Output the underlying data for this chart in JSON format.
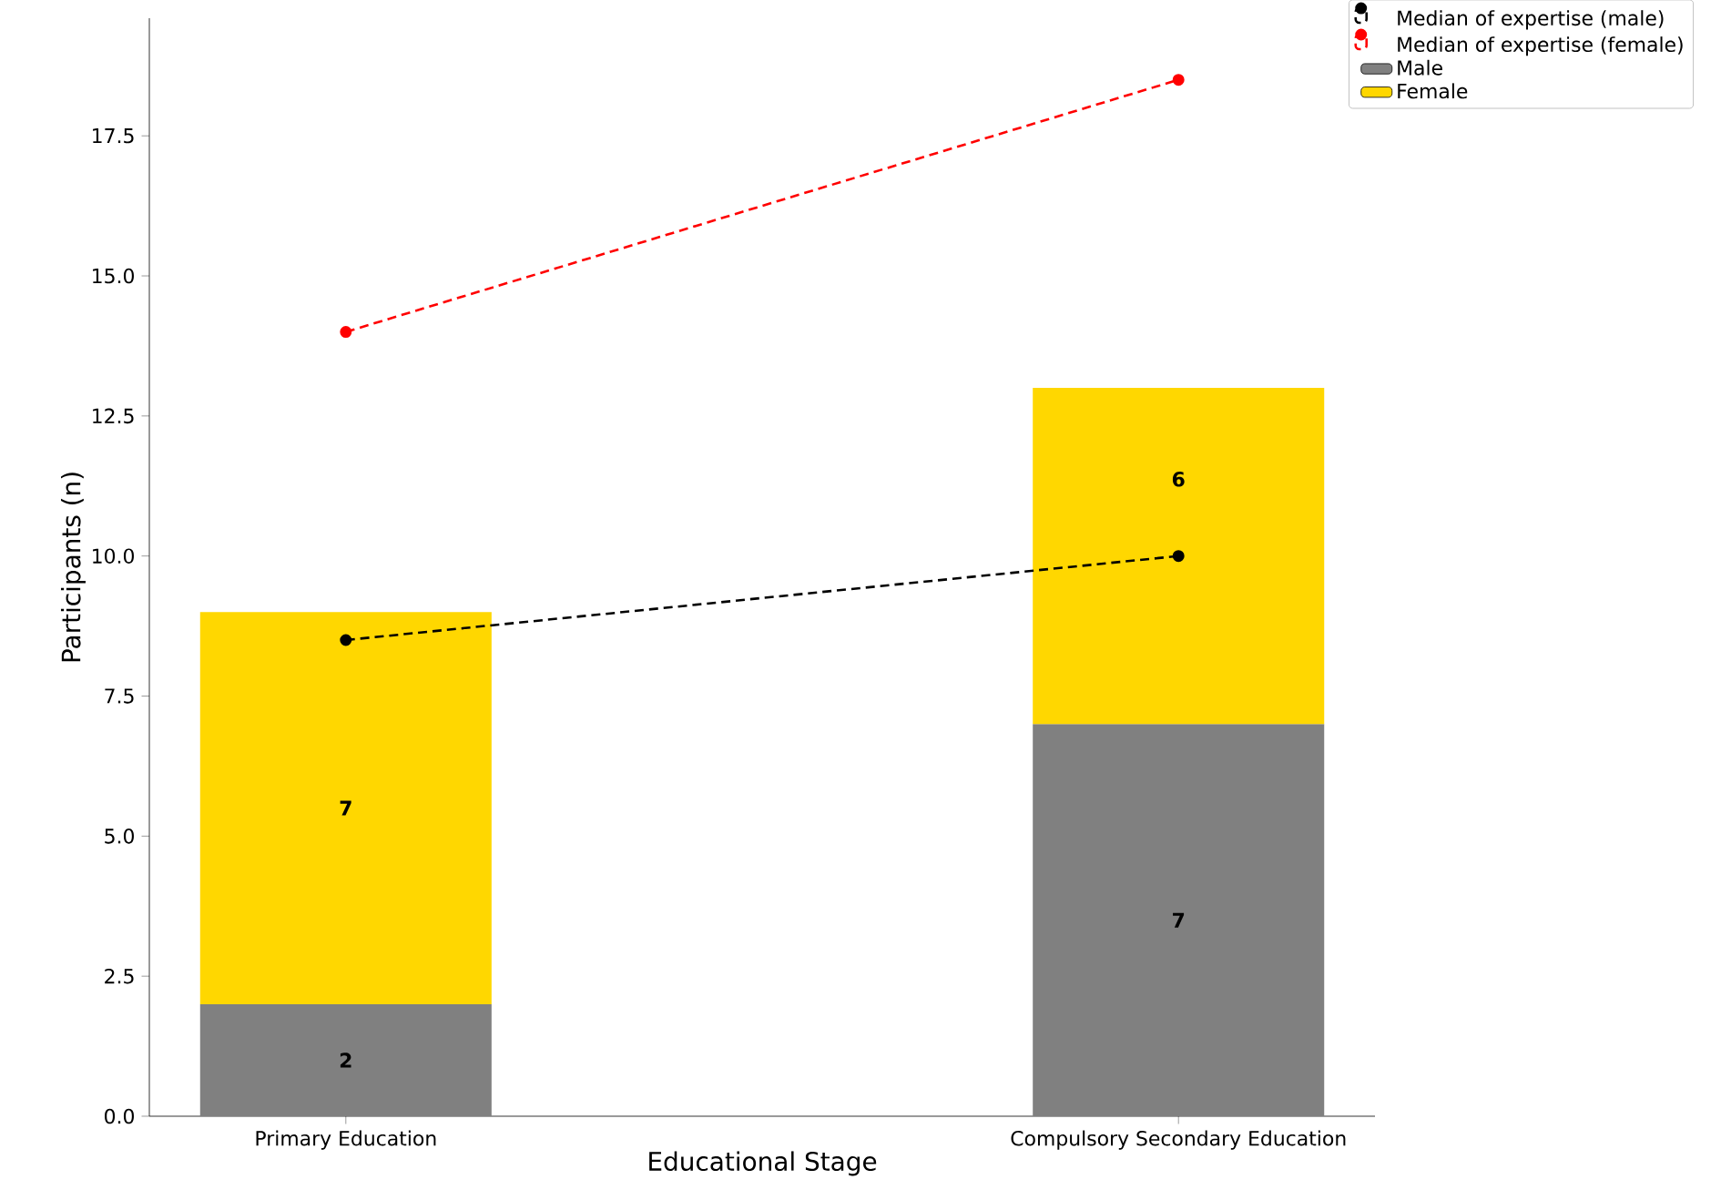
{
  "chart_data": {
    "type": "bar",
    "stacked": true,
    "xlabel": "Educational Stage",
    "ylabel": "Participants (n)",
    "categories": [
      "Primary Education",
      "Compulsory Secondary Education"
    ],
    "ylim": [
      0,
      19.6
    ],
    "yticks": [
      {
        "value": 0,
        "label": "0.0"
      },
      {
        "value": 2.5,
        "label": "2.5"
      },
      {
        "value": 5,
        "label": "5.0"
      },
      {
        "value": 7.5,
        "label": "7.5"
      },
      {
        "value": 10,
        "label": "10.0"
      },
      {
        "value": 12.5,
        "label": "12.5"
      },
      {
        "value": 15,
        "label": "15.0"
      },
      {
        "value": 17.5,
        "label": "17.5"
      }
    ],
    "legend": "top right",
    "series": [
      {
        "name": "Median of expertise (male)",
        "type": "line",
        "color": "#000000",
        "marker": "circle",
        "line_style": "dashed",
        "values": [
          8.5,
          10
        ]
      },
      {
        "name": "Median of expertise (female)",
        "type": "line",
        "color": "#ff0000",
        "marker": "circle",
        "line_style": "dashed",
        "values": [
          14,
          18.5
        ]
      },
      {
        "name": "Male",
        "color": "#808080",
        "values": [
          2,
          7
        ],
        "value_labels": [
          "2",
          "7"
        ]
      },
      {
        "name": "Female",
        "color": "#ffd700",
        "values": [
          7,
          6
        ],
        "value_labels": [
          "7",
          "6"
        ]
      }
    ]
  }
}
